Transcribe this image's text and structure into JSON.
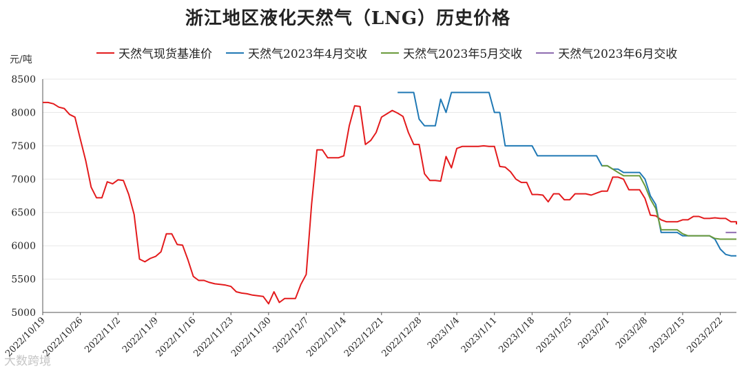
{
  "title": "浙江地区液化天然气（LNG）历史价格",
  "watermark": "大数跨境",
  "chart_data": {
    "type": "line",
    "title": "浙江地区液化天然气（LNG）历史价格",
    "ylabel": "元/吨",
    "xlabel": "",
    "ylim": [
      5000,
      8500
    ],
    "yticks": [
      5000,
      5500,
      6000,
      6500,
      7000,
      7500,
      8000,
      8500
    ],
    "xlim": [
      0,
      129
    ],
    "xticks": [
      {
        "x": 0,
        "label": "2022/10/19"
      },
      {
        "x": 7,
        "label": "2022/10/26"
      },
      {
        "x": 14,
        "label": "2022/11/2"
      },
      {
        "x": 21,
        "label": "2022/11/9"
      },
      {
        "x": 28,
        "label": "2022/11/16"
      },
      {
        "x": 35,
        "label": "2022/11/23"
      },
      {
        "x": 42,
        "label": "2022/11/30"
      },
      {
        "x": 49,
        "label": "2022/12/7"
      },
      {
        "x": 56,
        "label": "2022/12/14"
      },
      {
        "x": 63,
        "label": "2022/12/21"
      },
      {
        "x": 70,
        "label": "2022/12/28"
      },
      {
        "x": 77,
        "label": "2023/1/4"
      },
      {
        "x": 84,
        "label": "2023/1/11"
      },
      {
        "x": 91,
        "label": "2023/1/18"
      },
      {
        "x": 98,
        "label": "2023/1/25"
      },
      {
        "x": 105,
        "label": "2023/2/1"
      },
      {
        "x": 112,
        "label": "2023/2/8"
      },
      {
        "x": 119,
        "label": "2023/2/15"
      },
      {
        "x": 126,
        "label": "2023/2/22"
      }
    ],
    "grid": true,
    "legend_position": "top",
    "series": [
      {
        "name": "天然气现货基准价",
        "color": "#e31a1c",
        "points": [
          [
            0,
            8150
          ],
          [
            1,
            8150
          ],
          [
            2,
            8130
          ],
          [
            3,
            8080
          ],
          [
            4,
            8060
          ],
          [
            5,
            7970
          ],
          [
            6,
            7930
          ],
          [
            7,
            7600
          ],
          [
            8,
            7280
          ],
          [
            9,
            6880
          ],
          [
            10,
            6720
          ],
          [
            11,
            6720
          ],
          [
            12,
            6960
          ],
          [
            13,
            6930
          ],
          [
            14,
            6990
          ],
          [
            15,
            6980
          ],
          [
            16,
            6770
          ],
          [
            17,
            6470
          ],
          [
            18,
            5800
          ],
          [
            19,
            5760
          ],
          [
            20,
            5810
          ],
          [
            21,
            5840
          ],
          [
            22,
            5910
          ],
          [
            23,
            6180
          ],
          [
            24,
            6180
          ],
          [
            25,
            6020
          ],
          [
            26,
            6010
          ],
          [
            27,
            5790
          ],
          [
            28,
            5540
          ],
          [
            29,
            5480
          ],
          [
            30,
            5480
          ],
          [
            31,
            5450
          ],
          [
            32,
            5430
          ],
          [
            33,
            5420
          ],
          [
            34,
            5410
          ],
          [
            35,
            5390
          ],
          [
            36,
            5310
          ],
          [
            37,
            5290
          ],
          [
            38,
            5280
          ],
          [
            39,
            5260
          ],
          [
            40,
            5250
          ],
          [
            41,
            5240
          ],
          [
            42,
            5130
          ],
          [
            43,
            5310
          ],
          [
            44,
            5150
          ],
          [
            45,
            5210
          ],
          [
            46,
            5210
          ],
          [
            47,
            5210
          ],
          [
            48,
            5420
          ],
          [
            49,
            5570
          ],
          [
            50,
            6620
          ],
          [
            51,
            7440
          ],
          [
            52,
            7440
          ],
          [
            53,
            7320
          ],
          [
            54,
            7320
          ],
          [
            55,
            7320
          ],
          [
            56,
            7350
          ],
          [
            57,
            7800
          ],
          [
            58,
            8100
          ],
          [
            59,
            8090
          ],
          [
            60,
            7520
          ],
          [
            61,
            7580
          ],
          [
            62,
            7700
          ],
          [
            63,
            7930
          ],
          [
            64,
            7980
          ],
          [
            65,
            8030
          ],
          [
            66,
            7990
          ],
          [
            67,
            7940
          ],
          [
            68,
            7700
          ],
          [
            69,
            7520
          ],
          [
            70,
            7520
          ],
          [
            71,
            7080
          ],
          [
            72,
            6980
          ],
          [
            73,
            6980
          ],
          [
            74,
            6970
          ],
          [
            75,
            7340
          ],
          [
            76,
            7170
          ],
          [
            77,
            7460
          ],
          [
            78,
            7490
          ],
          [
            79,
            7490
          ],
          [
            80,
            7490
          ],
          [
            81,
            7490
          ],
          [
            82,
            7500
          ],
          [
            83,
            7490
          ],
          [
            84,
            7490
          ],
          [
            85,
            7190
          ],
          [
            86,
            7180
          ],
          [
            87,
            7110
          ],
          [
            88,
            7000
          ],
          [
            89,
            6950
          ],
          [
            90,
            6950
          ],
          [
            91,
            6770
          ],
          [
            92,
            6770
          ],
          [
            93,
            6760
          ],
          [
            94,
            6660
          ],
          [
            95,
            6780
          ],
          [
            96,
            6780
          ],
          [
            97,
            6690
          ],
          [
            98,
            6690
          ],
          [
            99,
            6780
          ],
          [
            100,
            6780
          ],
          [
            101,
            6780
          ],
          [
            102,
            6760
          ],
          [
            103,
            6790
          ],
          [
            104,
            6820
          ],
          [
            105,
            6820
          ],
          [
            106,
            7030
          ],
          [
            107,
            7030
          ],
          [
            108,
            7000
          ],
          [
            109,
            6840
          ],
          [
            110,
            6840
          ],
          [
            111,
            6840
          ],
          [
            112,
            6710
          ],
          [
            113,
            6460
          ],
          [
            114,
            6450
          ],
          [
            115,
            6390
          ],
          [
            116,
            6360
          ],
          [
            117,
            6360
          ],
          [
            118,
            6360
          ],
          [
            119,
            6390
          ],
          [
            120,
            6390
          ],
          [
            121,
            6440
          ],
          [
            122,
            6440
          ],
          [
            123,
            6410
          ],
          [
            124,
            6410
          ],
          [
            125,
            6420
          ],
          [
            126,
            6410
          ],
          [
            127,
            6410
          ],
          [
            128,
            6360
          ],
          [
            129,
            6360
          ],
          [
            130,
            6360
          ],
          [
            131,
            6320
          ]
        ]
      },
      {
        "name": "天然气2023年4月交收",
        "color": "#1f78b4",
        "points": [
          [
            66,
            8300
          ],
          [
            67,
            8300
          ],
          [
            68,
            8300
          ],
          [
            69,
            8300
          ],
          [
            70,
            7900
          ],
          [
            71,
            7800
          ],
          [
            72,
            7800
          ],
          [
            73,
            7800
          ],
          [
            74,
            8200
          ],
          [
            75,
            8000
          ],
          [
            76,
            8300
          ],
          [
            77,
            8300
          ],
          [
            78,
            8300
          ],
          [
            79,
            8300
          ],
          [
            80,
            8300
          ],
          [
            81,
            8300
          ],
          [
            82,
            8300
          ],
          [
            83,
            8300
          ],
          [
            84,
            8000
          ],
          [
            85,
            8000
          ],
          [
            86,
            7500
          ],
          [
            87,
            7500
          ],
          [
            88,
            7500
          ],
          [
            89,
            7500
          ],
          [
            90,
            7500
          ],
          [
            91,
            7500
          ],
          [
            92,
            7350
          ],
          [
            93,
            7350
          ],
          [
            94,
            7350
          ],
          [
            95,
            7350
          ],
          [
            96,
            7350
          ],
          [
            97,
            7350
          ],
          [
            98,
            7350
          ],
          [
            99,
            7350
          ],
          [
            100,
            7350
          ],
          [
            101,
            7350
          ],
          [
            102,
            7350
          ],
          [
            103,
            7350
          ],
          [
            104,
            7200
          ],
          [
            105,
            7200
          ],
          [
            106,
            7150
          ],
          [
            107,
            7150
          ],
          [
            108,
            7100
          ],
          [
            109,
            7100
          ],
          [
            110,
            7100
          ],
          [
            111,
            7100
          ],
          [
            112,
            7000
          ],
          [
            113,
            6750
          ],
          [
            114,
            6620
          ],
          [
            115,
            6200
          ],
          [
            116,
            6200
          ],
          [
            117,
            6200
          ],
          [
            118,
            6200
          ],
          [
            119,
            6150
          ],
          [
            120,
            6150
          ],
          [
            121,
            6150
          ],
          [
            122,
            6150
          ],
          [
            123,
            6150
          ],
          [
            124,
            6150
          ],
          [
            125,
            6100
          ],
          [
            126,
            5950
          ],
          [
            127,
            5870
          ],
          [
            128,
            5850
          ],
          [
            129,
            5850
          ],
          [
            130,
            5850
          ],
          [
            131,
            5850
          ]
        ]
      },
      {
        "name": "天然气2023年5月交收",
        "color": "#6a9a3a",
        "points": [
          [
            104,
            7200
          ],
          [
            105,
            7200
          ],
          [
            106,
            7150
          ],
          [
            107,
            7100
          ],
          [
            108,
            7050
          ],
          [
            109,
            7050
          ],
          [
            110,
            7050
          ],
          [
            111,
            7050
          ],
          [
            112,
            6900
          ],
          [
            113,
            6700
          ],
          [
            114,
            6560
          ],
          [
            115,
            6240
          ],
          [
            116,
            6240
          ],
          [
            117,
            6240
          ],
          [
            118,
            6240
          ],
          [
            119,
            6180
          ],
          [
            120,
            6150
          ],
          [
            121,
            6150
          ],
          [
            122,
            6150
          ],
          [
            123,
            6150
          ],
          [
            124,
            6150
          ],
          [
            125,
            6110
          ],
          [
            126,
            6100
          ],
          [
            127,
            6100
          ],
          [
            128,
            6100
          ],
          [
            129,
            6100
          ],
          [
            130,
            6100
          ],
          [
            131,
            6100
          ]
        ]
      },
      {
        "name": "天然气2023年6月交收",
        "color": "#8e6bb0",
        "points": [
          [
            127,
            6200
          ],
          [
            128,
            6200
          ],
          [
            129,
            6200
          ],
          [
            130,
            6200
          ],
          [
            131,
            6200
          ]
        ]
      }
    ]
  }
}
